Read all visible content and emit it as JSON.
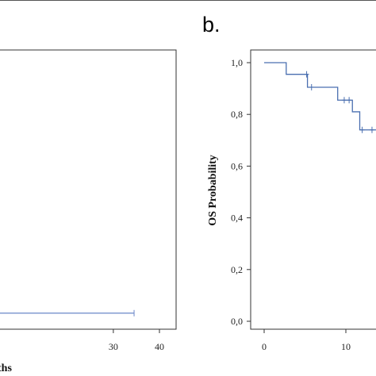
{
  "panels": {
    "left": {
      "xlabel_fragment": "ths"
    },
    "right": {
      "letter": "b."
    }
  },
  "chart_data": [
    {
      "type": "line",
      "title": "",
      "xlabel": "ths",
      "ylabel": "",
      "xlim": [
        0,
        40
      ],
      "ylim": [
        0,
        1.0
      ],
      "x_ticks": [
        "30",
        "40"
      ],
      "series": [
        {
          "color": "#6a86c8",
          "step": true,
          "points": [
            {
              "x": 0,
              "y": 0.06
            },
            {
              "x": 34.5,
              "y": 0.06
            }
          ],
          "censored": [
            {
              "x": 34.5,
              "y": 0.06
            }
          ]
        }
      ]
    },
    {
      "type": "line",
      "title": "",
      "xlabel": "",
      "ylabel": "OS Probability",
      "xlim": [
        0,
        14
      ],
      "ylim": [
        0,
        1.0
      ],
      "x_ticks": [
        "0",
        "10"
      ],
      "y_ticks": [
        "0,0",
        "0,2",
        "0,4",
        "0,6",
        "0,8",
        "1,0"
      ],
      "series": [
        {
          "color": "#4a6fb0",
          "step": true,
          "points": [
            {
              "x": 0,
              "y": 1.0
            },
            {
              "x": 2.7,
              "y": 1.0
            },
            {
              "x": 2.7,
              "y": 0.955
            },
            {
              "x": 5.3,
              "y": 0.955
            },
            {
              "x": 5.3,
              "y": 0.905
            },
            {
              "x": 9.0,
              "y": 0.905
            },
            {
              "x": 9.0,
              "y": 0.855
            },
            {
              "x": 10.8,
              "y": 0.855
            },
            {
              "x": 10.8,
              "y": 0.81
            },
            {
              "x": 11.7,
              "y": 0.81
            },
            {
              "x": 11.7,
              "y": 0.74
            },
            {
              "x": 14,
              "y": 0.74
            }
          ],
          "censored": [
            {
              "x": 5.2,
              "y": 0.955
            },
            {
              "x": 5.8,
              "y": 0.905
            },
            {
              "x": 9.8,
              "y": 0.855
            },
            {
              "x": 10.4,
              "y": 0.855
            },
            {
              "x": 12.0,
              "y": 0.74
            },
            {
              "x": 13.2,
              "y": 0.74
            }
          ]
        }
      ]
    }
  ]
}
